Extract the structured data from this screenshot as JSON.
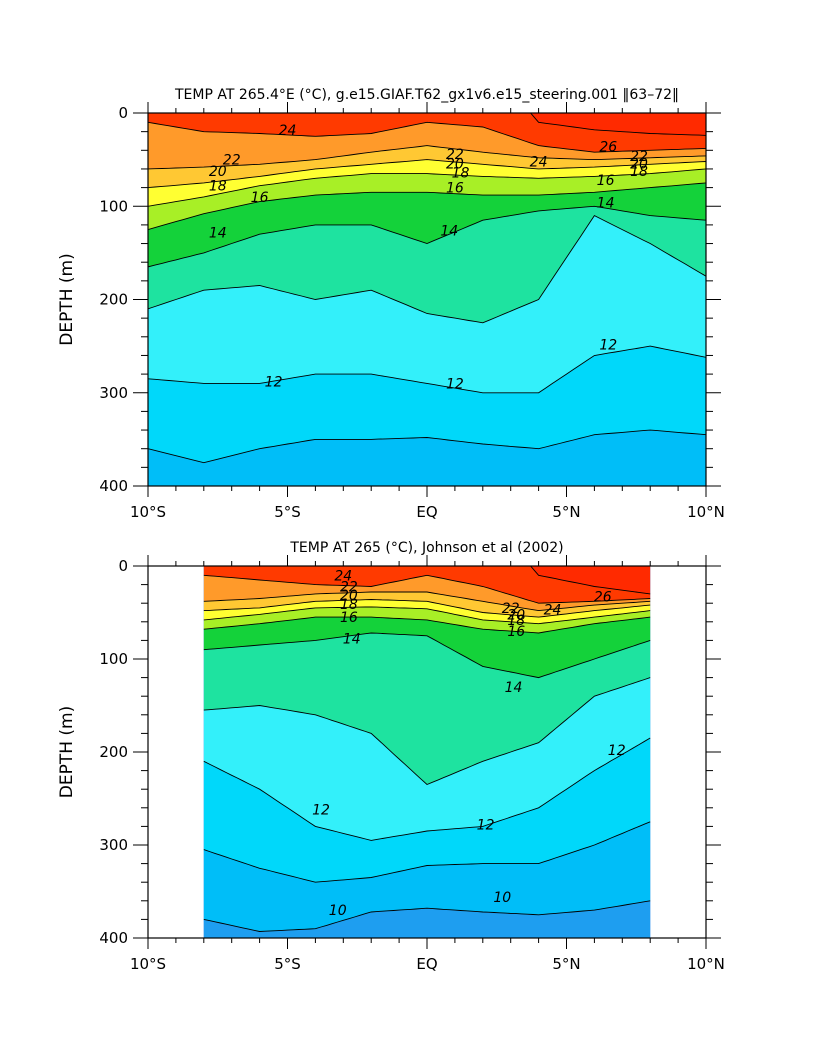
{
  "chart_data": [
    {
      "type": "heatmap",
      "subtype": "filled-contour",
      "title": "TEMP AT 265.4°E (°C), g.e15.GIAF.T62_gx1v6.e15_steering.001 ‖63–72‖",
      "xlabel": "",
      "ylabel": "DEPTH (m)",
      "xlim": [
        -10,
        10
      ],
      "ylim": [
        400,
        0
      ],
      "xticks": [
        -10,
        -5,
        0,
        5,
        10
      ],
      "xtick_labels": [
        "10°S",
        "5°S",
        "EQ",
        "5°N",
        "10°N"
      ],
      "yticks": [
        0,
        100,
        200,
        300,
        400
      ],
      "ytick_labels": [
        "0",
        "100",
        "200",
        "300",
        "400"
      ],
      "data_xlim": [
        -10,
        10
      ],
      "contour_interval": 1,
      "x": [
        -10,
        -8,
        -6,
        -4,
        -2,
        0,
        2,
        4,
        6,
        8,
        10
      ],
      "depth_by_temp": {
        "26": [
          null,
          null,
          null,
          null,
          null,
          null,
          null,
          10,
          18,
          22,
          24
        ],
        "24": [
          10,
          20,
          22,
          25,
          22,
          10,
          15,
          35,
          42,
          40,
          38
        ],
        "22": [
          60,
          58,
          55,
          50,
          42,
          35,
          42,
          48,
          50,
          48,
          46
        ],
        "20": [
          80,
          75,
          68,
          60,
          55,
          50,
          55,
          60,
          58,
          55,
          52
        ],
        "18": [
          100,
          90,
          78,
          70,
          65,
          65,
          68,
          70,
          68,
          65,
          60
        ],
        "16": [
          125,
          108,
          95,
          88,
          85,
          85,
          88,
          88,
          85,
          80,
          75
        ],
        "14": [
          165,
          150,
          130,
          120,
          120,
          140,
          115,
          105,
          100,
          110,
          115
        ],
        "13": [
          210,
          190,
          185,
          200,
          190,
          215,
          225,
          200,
          110,
          140,
          175
        ],
        "12": [
          285,
          290,
          290,
          280,
          280,
          290,
          300,
          300,
          260,
          250,
          262
        ],
        "11": [
          360,
          375,
          360,
          350,
          350,
          348,
          355,
          360,
          345,
          340,
          345
        ],
        "10": [
          420,
          420,
          420,
          420,
          420,
          420,
          420,
          420,
          420,
          420,
          420
        ]
      },
      "contour_labels": [
        {
          "text": "24",
          "x": -5.0,
          "y": 18
        },
        {
          "text": "22",
          "x": -7.0,
          "y": 50
        },
        {
          "text": "20",
          "x": -7.5,
          "y": 62
        },
        {
          "text": "18",
          "x": -7.5,
          "y": 78
        },
        {
          "text": "16",
          "x": -6.0,
          "y": 90
        },
        {
          "text": "14",
          "x": -7.5,
          "y": 128
        },
        {
          "text": "22",
          "x": 1.0,
          "y": 44
        },
        {
          "text": "20",
          "x": 1.0,
          "y": 54
        },
        {
          "text": "18",
          "x": 1.2,
          "y": 64
        },
        {
          "text": "16",
          "x": 1.0,
          "y": 80
        },
        {
          "text": "24",
          "x": 4.0,
          "y": 52
        },
        {
          "text": "14",
          "x": 0.8,
          "y": 126
        },
        {
          "text": "26",
          "x": 6.5,
          "y": 36
        },
        {
          "text": "22",
          "x": 7.6,
          "y": 46
        },
        {
          "text": "20",
          "x": 7.6,
          "y": 54
        },
        {
          "text": "18",
          "x": 7.6,
          "y": 62
        },
        {
          "text": "16",
          "x": 6.4,
          "y": 72
        },
        {
          "text": "14",
          "x": 6.4,
          "y": 96
        },
        {
          "text": "12",
          "x": 6.5,
          "y": 248
        },
        {
          "text": "12",
          "x": -5.5,
          "y": 288
        },
        {
          "text": "12",
          "x": 1.0,
          "y": 290
        }
      ]
    },
    {
      "type": "heatmap",
      "subtype": "filled-contour",
      "title": "TEMP AT 265 (°C), Johnson et al (2002)",
      "xlabel": "",
      "ylabel": "DEPTH (m)",
      "xlim": [
        -10,
        10
      ],
      "ylim": [
        400,
        0
      ],
      "xticks": [
        -10,
        -5,
        0,
        5,
        10
      ],
      "xtick_labels": [
        "10°S",
        "5°S",
        "EQ",
        "5°N",
        "10°N"
      ],
      "yticks": [
        0,
        100,
        200,
        300,
        400
      ],
      "ytick_labels": [
        "0",
        "100",
        "200",
        "300",
        "400"
      ],
      "data_xlim": [
        -8,
        8
      ],
      "contour_interval": 1,
      "x": [
        -8,
        -6,
        -4,
        -2,
        0,
        2,
        4,
        6,
        8
      ],
      "depth_by_temp": {
        "26": [
          null,
          null,
          null,
          null,
          null,
          null,
          10,
          22,
          30
        ],
        "24": [
          10,
          15,
          20,
          22,
          10,
          22,
          40,
          38,
          35
        ],
        "22": [
          38,
          35,
          30,
          28,
          28,
          38,
          48,
          42,
          38
        ],
        "20": [
          48,
          45,
          38,
          36,
          38,
          50,
          55,
          48,
          42
        ],
        "18": [
          58,
          52,
          45,
          44,
          46,
          58,
          62,
          55,
          48
        ],
        "16": [
          68,
          62,
          55,
          55,
          58,
          68,
          72,
          62,
          55
        ],
        "14": [
          90,
          85,
          80,
          72,
          75,
          108,
          120,
          100,
          80
        ],
        "13": [
          155,
          150,
          160,
          180,
          235,
          210,
          190,
          140,
          120
        ],
        "12": [
          210,
          240,
          280,
          295,
          285,
          280,
          260,
          220,
          185
        ],
        "11": [
          305,
          325,
          340,
          335,
          322,
          320,
          320,
          300,
          275
        ],
        "10": [
          380,
          393,
          390,
          372,
          368,
          372,
          375,
          370,
          360
        ]
      },
      "contour_labels": [
        {
          "text": "24",
          "x": -3.0,
          "y": 10
        },
        {
          "text": "22",
          "x": -2.8,
          "y": 22
        },
        {
          "text": "20",
          "x": -2.8,
          "y": 31
        },
        {
          "text": "18",
          "x": -2.8,
          "y": 41
        },
        {
          "text": "16",
          "x": -2.8,
          "y": 55
        },
        {
          "text": "14",
          "x": -2.7,
          "y": 78
        },
        {
          "text": "22",
          "x": 3.0,
          "y": 45
        },
        {
          "text": "20",
          "x": 3.2,
          "y": 52
        },
        {
          "text": "18",
          "x": 3.2,
          "y": 58
        },
        {
          "text": "16",
          "x": 3.2,
          "y": 70
        },
        {
          "text": "24",
          "x": 4.5,
          "y": 47
        },
        {
          "text": "26",
          "x": 6.3,
          "y": 33
        },
        {
          "text": "14",
          "x": 3.1,
          "y": 130
        },
        {
          "text": "12",
          "x": 6.8,
          "y": 198
        },
        {
          "text": "12",
          "x": -3.8,
          "y": 262
        },
        {
          "text": "12",
          "x": 2.1,
          "y": 278
        },
        {
          "text": "10",
          "x": -3.2,
          "y": 370
        },
        {
          "text": "10",
          "x": 2.7,
          "y": 356
        }
      ]
    }
  ]
}
